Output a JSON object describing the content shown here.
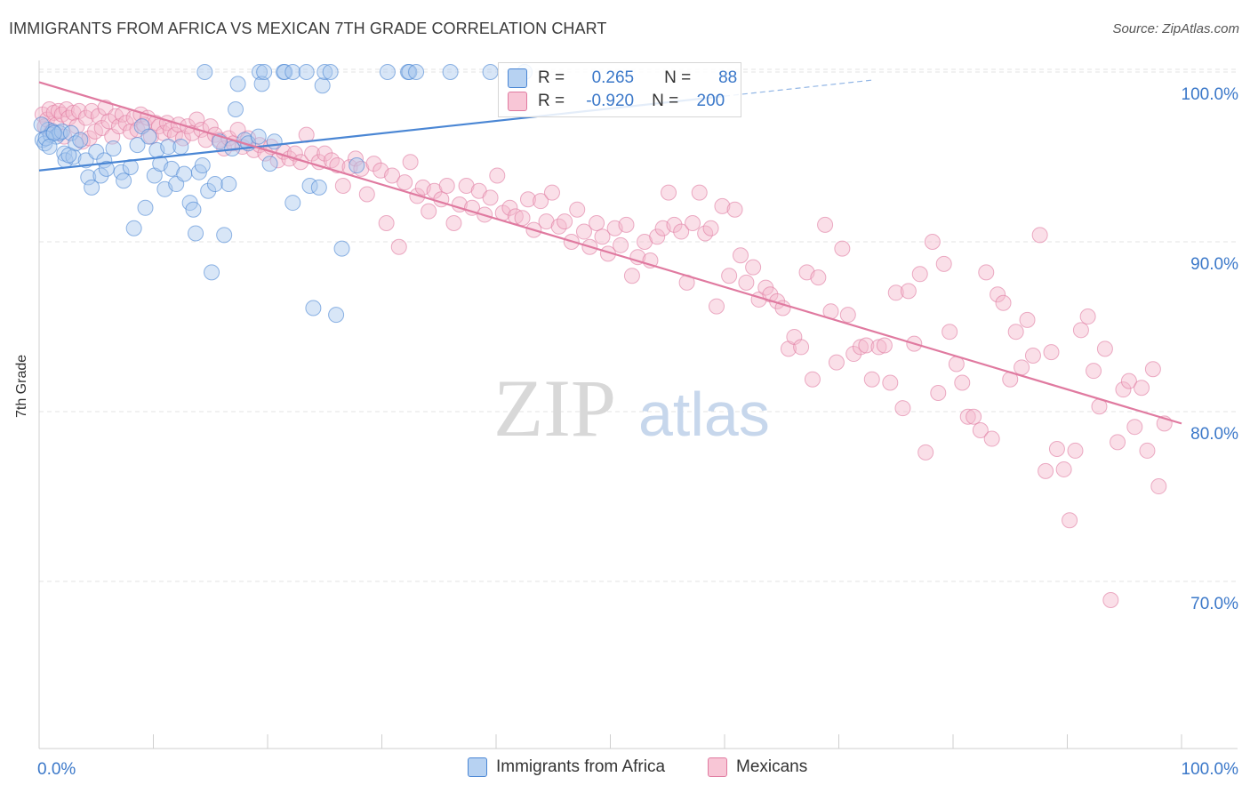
{
  "title": "IMMIGRANTS FROM AFRICA VS MEXICAN 7TH GRADE CORRELATION CHART",
  "source": "Source: ZipAtlas.com",
  "watermark": {
    "zip": "ZIP",
    "atlas": "atlas"
  },
  "colors": {
    "blue": "#4a86d4",
    "blue_fill": "#a9c8ee",
    "pink": "#e07aa0",
    "pink_fill": "#f5b8cd",
    "blue_text": "#3b78c9",
    "grid": "#e3e3e3"
  },
  "legend": {
    "row1": {
      "r_label": "R =",
      "r_value": "0.265",
      "n_label": "N =",
      "n_value": "88"
    },
    "row2": {
      "r_label": "R =",
      "r_value": "-0.920",
      "n_label": "N =",
      "n_value": "200"
    }
  },
  "bottom_legend": {
    "series1": "Immigrants from Africa",
    "series2": "Mexicans"
  },
  "chart_data": {
    "type": "scatter",
    "title": "IMMIGRANTS FROM AFRICA VS MEXICAN 7TH GRADE CORRELATION CHART",
    "xlabel": "",
    "ylabel": "7th Grade",
    "xlim": [
      0,
      100
    ],
    "ylim": [
      60,
      101
    ],
    "x_tick_labels": [
      "0.0%",
      "100.0%"
    ],
    "y_ticks": [
      70,
      80,
      90,
      100
    ],
    "y_tick_labels": [
      "70.0%",
      "80.0%",
      "90.0%",
      "100.0%"
    ],
    "grid": true,
    "legend_placement": "top-center",
    "series": [
      {
        "name": "Immigrants from Africa",
        "r": 0.265,
        "n": 88,
        "trend": {
          "x0": 0,
          "y0": 94.2,
          "x1": 100,
          "y1": 101.5,
          "solid_until": 60
        },
        "points": [
          [
            0.3,
            96.0
          ],
          [
            0.5,
            95.8
          ],
          [
            0.8,
            96.6
          ],
          [
            1.0,
            96.3
          ],
          [
            1.2,
            96.5
          ],
          [
            1.5,
            96.2
          ],
          [
            1.8,
            96.4
          ],
          [
            2.0,
            96.5
          ],
          [
            2.2,
            95.2
          ],
          [
            2.3,
            94.8
          ],
          [
            2.8,
            96.4
          ],
          [
            3.0,
            95.0
          ],
          [
            3.2,
            95.8
          ],
          [
            3.6,
            96.0
          ],
          [
            4.1,
            94.8
          ],
          [
            4.3,
            93.8
          ],
          [
            4.6,
            93.2
          ],
          [
            5.0,
            95.3
          ],
          [
            5.4,
            93.9
          ],
          [
            5.7,
            94.8
          ],
          [
            5.9,
            94.3
          ],
          [
            6.5,
            95.5
          ],
          [
            7.2,
            94.1
          ],
          [
            7.4,
            93.6
          ],
          [
            8.0,
            94.4
          ],
          [
            8.3,
            90.8
          ],
          [
            8.6,
            95.7
          ],
          [
            9.0,
            96.8
          ],
          [
            9.3,
            92.0
          ],
          [
            9.6,
            96.2
          ],
          [
            10.1,
            93.9
          ],
          [
            10.3,
            95.4
          ],
          [
            10.6,
            94.6
          ],
          [
            11.0,
            93.1
          ],
          [
            11.3,
            95.6
          ],
          [
            11.6,
            94.3
          ],
          [
            12.0,
            93.4
          ],
          [
            12.4,
            95.6
          ],
          [
            12.7,
            94.0
          ],
          [
            13.2,
            92.3
          ],
          [
            13.5,
            91.9
          ],
          [
            13.7,
            90.5
          ],
          [
            14.0,
            94.1
          ],
          [
            14.3,
            94.5
          ],
          [
            14.8,
            93.0
          ],
          [
            15.1,
            88.2
          ],
          [
            15.4,
            93.4
          ],
          [
            15.8,
            95.9
          ],
          [
            16.2,
            90.4
          ],
          [
            16.6,
            93.4
          ],
          [
            16.9,
            95.5
          ],
          [
            17.2,
            97.8
          ],
          [
            17.4,
            99.3
          ],
          [
            18.0,
            96.0
          ],
          [
            18.3,
            95.8
          ],
          [
            19.2,
            96.2
          ],
          [
            19.3,
            100.0
          ],
          [
            19.5,
            99.3
          ],
          [
            19.7,
            100.0
          ],
          [
            20.2,
            94.6
          ],
          [
            20.6,
            95.9
          ],
          [
            21.4,
            100.0
          ],
          [
            21.5,
            100.0
          ],
          [
            22.2,
            100.0
          ],
          [
            22.2,
            92.3
          ],
          [
            23.4,
            100.0
          ],
          [
            23.7,
            93.3
          ],
          [
            24.0,
            86.1
          ],
          [
            24.5,
            93.2
          ],
          [
            24.8,
            99.2
          ],
          [
            25.0,
            100.0
          ],
          [
            25.5,
            100.0
          ],
          [
            26.0,
            85.7
          ],
          [
            26.5,
            89.6
          ],
          [
            27.8,
            94.5
          ],
          [
            30.5,
            100.0
          ],
          [
            32.3,
            100.0
          ],
          [
            32.4,
            100.0
          ],
          [
            33.0,
            100.0
          ],
          [
            36.0,
            100.0
          ],
          [
            39.5,
            100.0
          ],
          [
            42.5,
            100.0
          ],
          [
            14.5,
            100.0
          ],
          [
            0.2,
            96.9
          ],
          [
            0.6,
            96.1
          ],
          [
            1.3,
            96.4
          ],
          [
            0.9,
            95.6
          ],
          [
            2.6,
            95.1
          ]
        ]
      },
      {
        "name": "Mexicans",
        "r": -0.92,
        "n": 200,
        "trend": {
          "x0": 0,
          "y0": 99.4,
          "x1": 100,
          "y1": 79.3
        },
        "points": [
          [
            0.3,
            97.5
          ],
          [
            0.5,
            96.8
          ],
          [
            0.7,
            97.2
          ],
          [
            0.9,
            97.8
          ],
          [
            1.1,
            96.5
          ],
          [
            1.3,
            97.6
          ],
          [
            1.5,
            96.9
          ],
          [
            1.7,
            97.7
          ],
          [
            2.0,
            97.5
          ],
          [
            2.2,
            96.2
          ],
          [
            2.4,
            97.8
          ],
          [
            2.6,
            97.3
          ],
          [
            3.0,
            97.6
          ],
          [
            3.3,
            96.8
          ],
          [
            3.5,
            97.7
          ],
          [
            3.8,
            95.9
          ],
          [
            4.1,
            97.3
          ],
          [
            4.4,
            96.1
          ],
          [
            4.6,
            97.7
          ],
          [
            4.9,
            96.5
          ],
          [
            5.2,
            97.4
          ],
          [
            5.5,
            96.7
          ],
          [
            5.8,
            97.9
          ],
          [
            6.1,
            97.1
          ],
          [
            6.4,
            96.2
          ],
          [
            6.7,
            97.4
          ],
          [
            7.0,
            96.8
          ],
          [
            7.3,
            97.5
          ],
          [
            7.6,
            97.0
          ],
          [
            8.0,
            96.5
          ],
          [
            8.3,
            97.3
          ],
          [
            8.6,
            96.6
          ],
          [
            8.9,
            97.5
          ],
          [
            9.2,
            96.9
          ],
          [
            9.5,
            97.3
          ],
          [
            9.8,
            96.2
          ],
          [
            10.2,
            97.0
          ],
          [
            10.5,
            96.8
          ],
          [
            10.9,
            96.4
          ],
          [
            11.2,
            97.0
          ],
          [
            11.5,
            96.6
          ],
          [
            11.9,
            96.3
          ],
          [
            12.2,
            96.9
          ],
          [
            12.6,
            96.1
          ],
          [
            13.0,
            96.8
          ],
          [
            13.4,
            96.4
          ],
          [
            13.8,
            97.2
          ],
          [
            14.2,
            96.6
          ],
          [
            14.6,
            96.0
          ],
          [
            15.0,
            96.8
          ],
          [
            15.4,
            96.3
          ],
          [
            15.8,
            96.0
          ],
          [
            16.2,
            95.5
          ],
          [
            16.6,
            96.1
          ],
          [
            17.0,
            95.8
          ],
          [
            17.4,
            96.6
          ],
          [
            17.8,
            95.6
          ],
          [
            18.3,
            96.1
          ],
          [
            18.8,
            95.4
          ],
          [
            19.3,
            95.7
          ],
          [
            19.8,
            95.2
          ],
          [
            20.3,
            95.6
          ],
          [
            20.9,
            94.8
          ],
          [
            21.4,
            95.3
          ],
          [
            21.9,
            94.9
          ],
          [
            22.4,
            95.2
          ],
          [
            22.9,
            94.7
          ],
          [
            23.4,
            96.3
          ],
          [
            23.9,
            95.2
          ],
          [
            24.5,
            94.7
          ],
          [
            25.0,
            95.2
          ],
          [
            25.6,
            94.8
          ],
          [
            26.1,
            94.5
          ],
          [
            26.6,
            93.3
          ],
          [
            27.2,
            94.4
          ],
          [
            27.7,
            94.9
          ],
          [
            28.2,
            94.3
          ],
          [
            28.7,
            92.8
          ],
          [
            29.3,
            94.6
          ],
          [
            29.9,
            94.2
          ],
          [
            30.4,
            91.1
          ],
          [
            30.9,
            93.9
          ],
          [
            31.5,
            89.7
          ],
          [
            32.0,
            93.5
          ],
          [
            32.5,
            94.7
          ],
          [
            33.1,
            92.7
          ],
          [
            33.6,
            93.2
          ],
          [
            34.1,
            91.8
          ],
          [
            34.6,
            93.0
          ],
          [
            35.2,
            92.5
          ],
          [
            35.7,
            93.3
          ],
          [
            36.3,
            91.1
          ],
          [
            36.8,
            92.2
          ],
          [
            37.4,
            93.3
          ],
          [
            37.9,
            92.0
          ],
          [
            38.5,
            93.0
          ],
          [
            39.0,
            91.6
          ],
          [
            39.5,
            92.6
          ],
          [
            40.1,
            93.9
          ],
          [
            40.6,
            91.7
          ],
          [
            41.2,
            92.0
          ],
          [
            41.7,
            91.5
          ],
          [
            42.3,
            91.4
          ],
          [
            42.8,
            92.5
          ],
          [
            43.3,
            90.7
          ],
          [
            43.9,
            92.4
          ],
          [
            44.4,
            91.2
          ],
          [
            44.9,
            92.9
          ],
          [
            45.5,
            90.9
          ],
          [
            46.0,
            91.2
          ],
          [
            46.6,
            90.0
          ],
          [
            47.1,
            91.9
          ],
          [
            47.7,
            90.6
          ],
          [
            48.2,
            89.7
          ],
          [
            48.8,
            91.1
          ],
          [
            49.3,
            90.3
          ],
          [
            49.8,
            89.3
          ],
          [
            50.4,
            90.8
          ],
          [
            50.9,
            89.8
          ],
          [
            51.4,
            91.0
          ],
          [
            51.9,
            88.0
          ],
          [
            52.4,
            89.1
          ],
          [
            53.0,
            90.0
          ],
          [
            53.5,
            88.9
          ],
          [
            54.1,
            90.3
          ],
          [
            54.6,
            90.8
          ],
          [
            55.1,
            92.9
          ],
          [
            55.6,
            91.0
          ],
          [
            56.2,
            90.6
          ],
          [
            56.7,
            87.6
          ],
          [
            57.2,
            91.1
          ],
          [
            57.8,
            92.9
          ],
          [
            58.3,
            90.5
          ],
          [
            58.8,
            90.8
          ],
          [
            59.3,
            86.2
          ],
          [
            59.8,
            92.1
          ],
          [
            60.4,
            88.0
          ],
          [
            60.9,
            91.9
          ],
          [
            61.4,
            89.2
          ],
          [
            61.9,
            87.6
          ],
          [
            62.5,
            88.5
          ],
          [
            63.0,
            86.6
          ],
          [
            63.6,
            87.3
          ],
          [
            64.0,
            86.9
          ],
          [
            64.6,
            86.5
          ],
          [
            65.1,
            86.1
          ],
          [
            65.6,
            83.7
          ],
          [
            66.1,
            84.4
          ],
          [
            66.7,
            83.8
          ],
          [
            67.2,
            88.2
          ],
          [
            67.7,
            81.9
          ],
          [
            68.2,
            87.9
          ],
          [
            68.8,
            91.0
          ],
          [
            69.3,
            85.9
          ],
          [
            69.8,
            82.9
          ],
          [
            70.3,
            89.6
          ],
          [
            70.8,
            85.7
          ],
          [
            71.3,
            83.4
          ],
          [
            71.9,
            83.8
          ],
          [
            72.4,
            83.9
          ],
          [
            72.9,
            81.9
          ],
          [
            73.5,
            83.8
          ],
          [
            74.0,
            83.9
          ],
          [
            74.5,
            81.7
          ],
          [
            75.0,
            87.0
          ],
          [
            75.6,
            80.2
          ],
          [
            76.1,
            87.1
          ],
          [
            76.6,
            84.0
          ],
          [
            77.1,
            88.1
          ],
          [
            77.6,
            77.6
          ],
          [
            78.2,
            90.0
          ],
          [
            78.7,
            81.1
          ],
          [
            79.2,
            88.7
          ],
          [
            79.7,
            84.7
          ],
          [
            80.3,
            82.8
          ],
          [
            80.8,
            81.7
          ],
          [
            81.3,
            79.7
          ],
          [
            81.8,
            79.7
          ],
          [
            82.4,
            78.9
          ],
          [
            82.9,
            88.2
          ],
          [
            83.4,
            78.4
          ],
          [
            83.9,
            86.9
          ],
          [
            84.4,
            86.4
          ],
          [
            85.0,
            81.9
          ],
          [
            85.5,
            84.7
          ],
          [
            86.0,
            82.6
          ],
          [
            86.5,
            85.4
          ],
          [
            87.0,
            83.3
          ],
          [
            87.6,
            90.4
          ],
          [
            88.1,
            76.5
          ],
          [
            88.6,
            83.5
          ],
          [
            89.1,
            77.8
          ],
          [
            89.7,
            76.6
          ],
          [
            90.2,
            73.6
          ],
          [
            90.7,
            77.7
          ],
          [
            91.2,
            84.8
          ],
          [
            91.8,
            85.6
          ],
          [
            92.3,
            82.4
          ],
          [
            92.8,
            80.3
          ],
          [
            93.3,
            83.7
          ],
          [
            93.8,
            68.9
          ],
          [
            94.4,
            78.2
          ],
          [
            94.9,
            81.3
          ],
          [
            95.4,
            81.8
          ],
          [
            95.9,
            79.1
          ],
          [
            96.5,
            81.4
          ],
          [
            97.0,
            77.7
          ],
          [
            97.5,
            82.5
          ],
          [
            98.0,
            75.6
          ],
          [
            98.5,
            79.3
          ]
        ]
      }
    ]
  }
}
